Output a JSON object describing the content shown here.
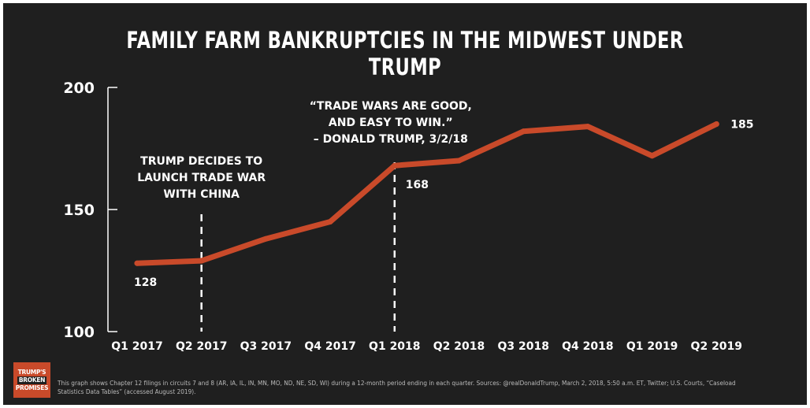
{
  "title": "FAMILY FARM BANKRUPTCIES IN THE MIDWEST UNDER TRUMP",
  "chart_data": {
    "type": "line",
    "title": "FAMILY FARM BANKRUPTCIES IN THE MIDWEST UNDER TRUMP",
    "categories": [
      "Q1 2017",
      "Q2 2017",
      "Q3 2017",
      "Q4 2017",
      "Q1 2018",
      "Q2 2018",
      "Q3 2018",
      "Q4 2018",
      "Q1 2019",
      "Q2 2019"
    ],
    "series": [
      {
        "values": [
          128,
          129,
          138,
          145,
          168,
          170,
          182,
          184,
          172,
          185
        ]
      }
    ],
    "ylim": [
      100,
      200
    ],
    "yticks": [
      "100",
      "150",
      "200"
    ],
    "data_labels": [
      {
        "index": 0,
        "text": "128"
      },
      {
        "index": 4,
        "text": "168"
      },
      {
        "index": 9,
        "text": "185"
      }
    ],
    "annotations": [
      {
        "at_index": 1,
        "lines": [
          "TRUMP DECIDES TO",
          "LAUNCH TRADE WAR",
          "WITH CHINA"
        ]
      },
      {
        "at_index": 4,
        "lines": [
          "“TRADE WARS ARE GOOD,",
          "AND EASY TO WIN.”",
          "– DONALD TRUMP, 3/2/18"
        ]
      }
    ],
    "xlabel": "",
    "ylabel": "",
    "grid": false,
    "line_color": "#c94a2a"
  },
  "logo": {
    "line1": "TRUMP'S",
    "line2": "BROKEN",
    "line3": "PROMISES",
    "color": "#c94a2a"
  },
  "footnote": "This graph shows Chapter 12 filings in circuits 7 and 8 (AR, IA, IL, IN, MN, MO, ND, NE, SD, WI) during a 12-month period ending in each quarter. Sources: @realDonaldTrump, March 2, 2018, 5:50 a.m. ET, Twitter; U.S. Courts, “Caseload Statistics Data Tables” (accessed August 2019)."
}
